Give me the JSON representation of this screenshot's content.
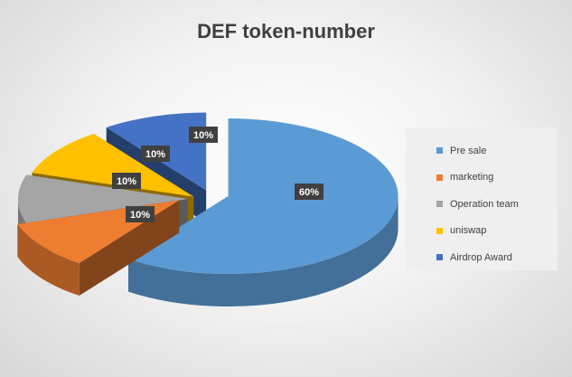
{
  "chart_data": {
    "type": "pie",
    "title": "DEF token-number",
    "categories": [
      "Pre sale",
      "marketing",
      "Operation team",
      "uniswap",
      "Airdrop Award"
    ],
    "values": [
      60,
      10,
      10,
      10,
      10
    ],
    "data_labels": [
      "60%",
      "10%",
      "10%",
      "10%",
      "10%"
    ],
    "colors": [
      "#5b9bd5",
      "#ed7d31",
      "#a5a5a5",
      "#ffc000",
      "#4472c4"
    ],
    "legend_position": "right",
    "style": "3d-exploded"
  }
}
